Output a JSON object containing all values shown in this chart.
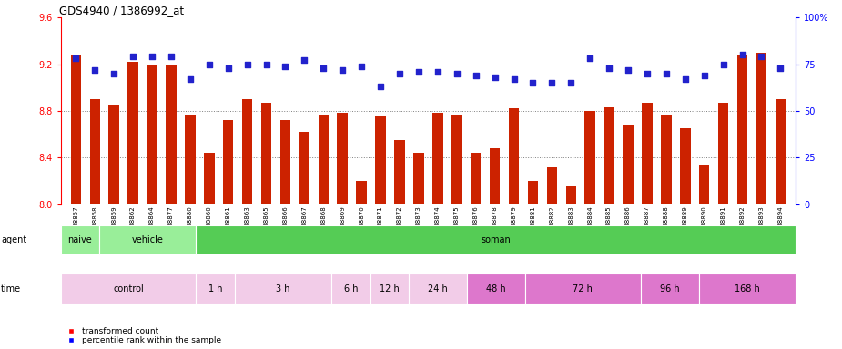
{
  "title": "GDS4940 / 1386992_at",
  "samples": [
    "GSM338857",
    "GSM338858",
    "GSM338859",
    "GSM338862",
    "GSM338864",
    "GSM338877",
    "GSM338880",
    "GSM338860",
    "GSM338861",
    "GSM338863",
    "GSM338865",
    "GSM338866",
    "GSM338867",
    "GSM338868",
    "GSM338869",
    "GSM338870",
    "GSM338871",
    "GSM338872",
    "GSM338873",
    "GSM338874",
    "GSM338875",
    "GSM338876",
    "GSM338878",
    "GSM338879",
    "GSM338881",
    "GSM338882",
    "GSM338883",
    "GSM338884",
    "GSM338885",
    "GSM338886",
    "GSM338887",
    "GSM338888",
    "GSM338889",
    "GSM338890",
    "GSM338891",
    "GSM338892",
    "GSM338893",
    "GSM338894"
  ],
  "bar_values": [
    9.28,
    8.9,
    8.85,
    9.22,
    9.2,
    9.2,
    8.76,
    8.44,
    8.72,
    8.9,
    8.87,
    8.72,
    8.62,
    8.77,
    8.78,
    8.2,
    8.75,
    8.55,
    8.44,
    8.78,
    8.77,
    8.44,
    8.48,
    8.82,
    8.2,
    8.32,
    8.15,
    8.8,
    8.83,
    8.68,
    8.87,
    8.76,
    8.65,
    8.33,
    8.87,
    9.28,
    9.3,
    8.9
  ],
  "percentile_values": [
    78,
    72,
    70,
    79,
    79,
    79,
    67,
    75,
    73,
    75,
    75,
    74,
    77,
    73,
    72,
    74,
    63,
    70,
    71,
    71,
    70,
    69,
    68,
    67,
    65,
    65,
    65,
    78,
    73,
    72,
    70,
    70,
    67,
    69,
    75,
    80,
    79,
    73
  ],
  "ylim_left": [
    8.0,
    9.6
  ],
  "ylim_right": [
    0,
    100
  ],
  "yticks_left": [
    8.0,
    8.4,
    8.8,
    9.2,
    9.6
  ],
  "yticks_right": [
    0,
    25,
    50,
    75,
    100
  ],
  "bar_color": "#cc2200",
  "percentile_color": "#2222cc",
  "plot_bg_color": "#ffffff",
  "agent_groups": [
    {
      "text": "naive",
      "start": 0,
      "end": 2,
      "color": "#99ee99"
    },
    {
      "text": "vehicle",
      "start": 2,
      "end": 7,
      "color": "#99ee99"
    },
    {
      "text": "soman",
      "start": 7,
      "end": 38,
      "color": "#55cc55"
    }
  ],
  "time_groups": [
    {
      "text": "control",
      "start": 0,
      "end": 7,
      "color": "#f2cce8"
    },
    {
      "text": "1 h",
      "start": 7,
      "end": 9,
      "color": "#f2cce8"
    },
    {
      "text": "3 h",
      "start": 9,
      "end": 14,
      "color": "#f2cce8"
    },
    {
      "text": "6 h",
      "start": 14,
      "end": 16,
      "color": "#f2cce8"
    },
    {
      "text": "12 h",
      "start": 16,
      "end": 18,
      "color": "#f2cce8"
    },
    {
      "text": "24 h",
      "start": 18,
      "end": 21,
      "color": "#f2cce8"
    },
    {
      "text": "48 h",
      "start": 21,
      "end": 24,
      "color": "#dd77cc"
    },
    {
      "text": "72 h",
      "start": 24,
      "end": 30,
      "color": "#dd77cc"
    },
    {
      "text": "96 h",
      "start": 30,
      "end": 33,
      "color": "#dd77cc"
    },
    {
      "text": "168 h",
      "start": 33,
      "end": 38,
      "color": "#dd77cc"
    }
  ]
}
